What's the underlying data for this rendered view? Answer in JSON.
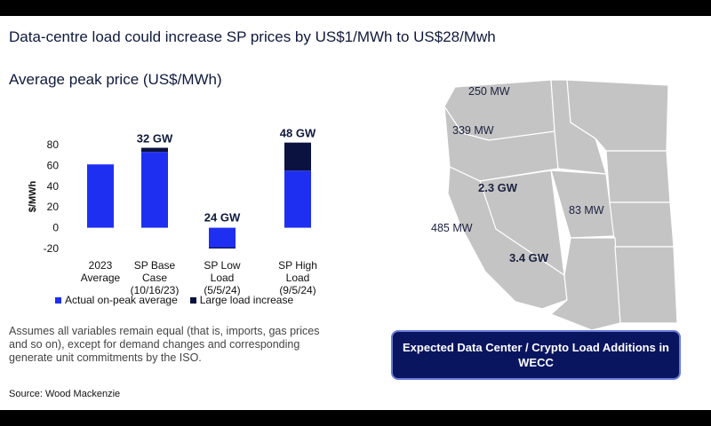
{
  "title": "Data-centre load could increase SP prices by US$1/MWh to US$28/Mwh",
  "chart_data": {
    "type": "bar",
    "stacked": true,
    "title": "Average peak price (US$/MWh)",
    "ylabel": "$/MWh",
    "ylim": [
      -20,
      80
    ],
    "yticks": [
      80,
      60,
      40,
      20,
      0,
      -20
    ],
    "categories": [
      [
        "2023",
        "Average"
      ],
      [
        "SP Base",
        "Case",
        "(10/16/23)"
      ],
      [
        "SP Low",
        "Load",
        "(5/5/24)"
      ],
      [
        "SP High",
        "Load",
        "(9/5/24)"
      ]
    ],
    "series": [
      {
        "name": "Actual on-peak average",
        "color": "#1f2ff2",
        "values": [
          61,
          73,
          -20,
          55
        ]
      },
      {
        "name": "Large load increase",
        "color": "#0b1240",
        "values": [
          0,
          4,
          1,
          27
        ]
      }
    ],
    "bar_labels": [
      "",
      "32 GW",
      "24 GW",
      "48 GW"
    ]
  },
  "note": "Assumes all variables remain equal (that is, imports, gas prices and so on), except for demand changes and corresponding generate unit commitments by the ISO.",
  "source": "Source: Wood Mackenzie",
  "map": {
    "labels": [
      {
        "text": "250 MW",
        "big": false
      },
      {
        "text": "339 MW",
        "big": false
      },
      {
        "text": "2.3 GW",
        "big": true
      },
      {
        "text": "83 MW",
        "big": false
      },
      {
        "text": "485 MW",
        "big": false
      },
      {
        "text": "3.4 GW",
        "big": true
      }
    ],
    "callout": "Expected Data Center / Crypto Load Additions in WECC"
  }
}
